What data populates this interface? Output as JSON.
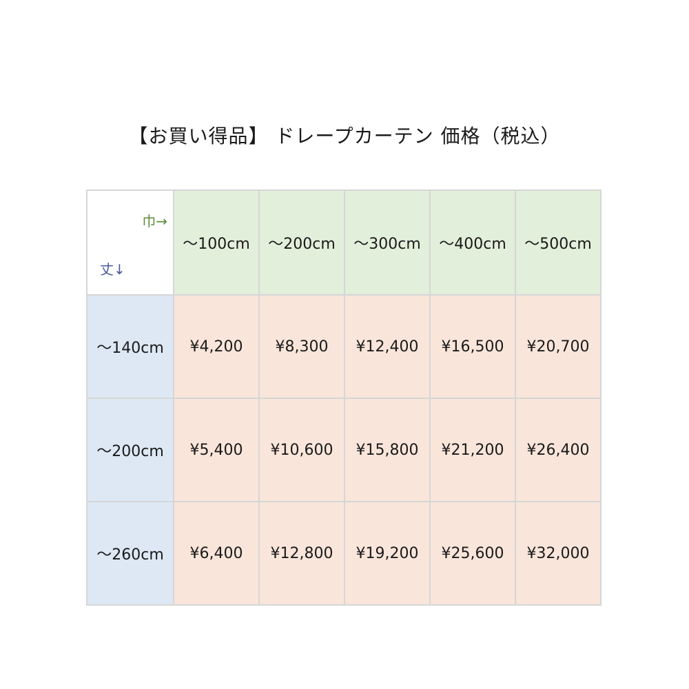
{
  "title": "【お買い得品】 ドレープカーテン 価格（税込）",
  "corner": {
    "width_label": "巾→",
    "height_label": "丈↓"
  },
  "columns": [
    "～100cm",
    "～200cm",
    "～300cm",
    "～400cm",
    "～500cm"
  ],
  "rows": [
    {
      "label": "～140cm",
      "prices": [
        "¥4,200",
        "¥8,300",
        "¥12,400",
        "¥16,500",
        "¥20,700"
      ]
    },
    {
      "label": "～200cm",
      "prices": [
        "¥5,400",
        "¥10,600",
        "¥15,800",
        "¥21,200",
        "¥26,400"
      ]
    },
    {
      "label": "～260cm",
      "prices": [
        "¥6,400",
        "¥12,800",
        "¥19,200",
        "¥25,600",
        "¥32,000"
      ]
    }
  ],
  "colors": {
    "header": "#e2efda",
    "row_header": "#dde8f4",
    "price": "#f9e5da",
    "width_label": "#5a8a3c",
    "height_label": "#4a5a9a"
  }
}
